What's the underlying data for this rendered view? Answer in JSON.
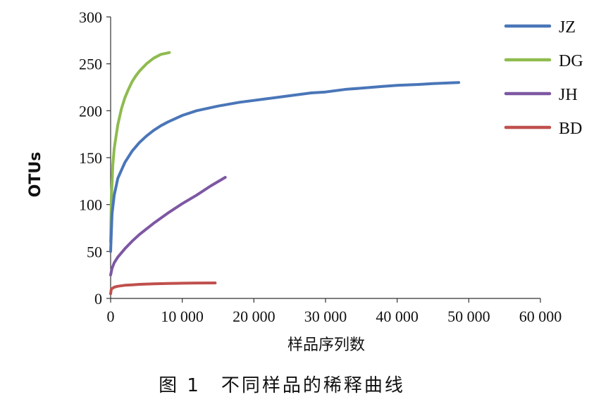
{
  "figure_caption": "图 1　不同样品的稀释曲线",
  "chart_data": {
    "type": "line",
    "title": "",
    "xlabel": "样品序列数",
    "ylabel": "OTUs",
    "xlim": [
      0,
      60000
    ],
    "ylim": [
      0,
      300
    ],
    "x_ticks": [
      "0",
      "10 000",
      "20 000",
      "30 000",
      "40 000",
      "50 000",
      "60 000"
    ],
    "y_ticks": [
      "0",
      "50",
      "100",
      "150",
      "200",
      "250",
      "300"
    ],
    "grid": false,
    "legend_position": "right",
    "series": [
      {
        "name": "JZ",
        "color": "#4a76b8",
        "x": [
          0,
          200,
          500,
          1000,
          2000,
          3000,
          4000,
          5000,
          6000,
          7000,
          8000,
          10000,
          12000,
          15000,
          18000,
          20000,
          22000,
          25000,
          28000,
          30000,
          33000,
          35000,
          38000,
          40000,
          43000,
          45000,
          48600
        ],
        "y": [
          50,
          90,
          110,
          128,
          145,
          157,
          166,
          173,
          179,
          184,
          188,
          195,
          200,
          205,
          209,
          211,
          213,
          216,
          219,
          220,
          223,
          224,
          226,
          227,
          228,
          229,
          230
        ]
      },
      {
        "name": "DG",
        "color": "#8fbb4f",
        "x": [
          0,
          100,
          300,
          500,
          1000,
          1500,
          2000,
          2500,
          3000,
          3500,
          4000,
          5000,
          6000,
          7000,
          8200
        ],
        "y": [
          60,
          105,
          142,
          160,
          185,
          202,
          214,
          223,
          231,
          237,
          242,
          250,
          256,
          260,
          262
        ]
      },
      {
        "name": "JH",
        "color": "#7d57a3",
        "x": [
          0,
          200,
          500,
          1000,
          2000,
          3000,
          4000,
          5000,
          6000,
          8000,
          10000,
          12000,
          14000,
          16000
        ],
        "y": [
          25,
          32,
          38,
          44,
          53,
          61,
          68,
          74,
          80,
          91,
          101,
          110,
          120,
          129
        ]
      },
      {
        "name": "BD",
        "color": "#c0504d",
        "x": [
          0,
          100,
          300,
          500,
          1000,
          2000,
          3000,
          4000,
          6000,
          8000,
          10000,
          12000,
          14600
        ],
        "y": [
          5,
          10,
          11,
          12,
          13,
          14,
          14.5,
          15,
          15.5,
          16,
          16.2,
          16.4,
          16.5
        ]
      }
    ]
  }
}
